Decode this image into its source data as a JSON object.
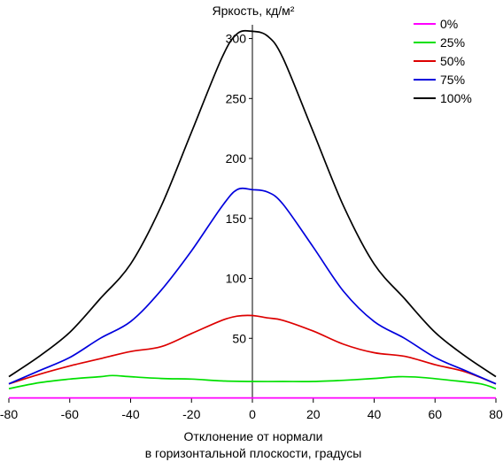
{
  "chart_data": {
    "type": "line",
    "title": "Яркость, кд/м²",
    "xlabel_line1": "Отклонение от нормали",
    "xlabel_line2": "в горизонтальной плоскости, градусы",
    "xlim": [
      -80,
      80
    ],
    "ylim": [
      0,
      310
    ],
    "x_ticks": [
      -80,
      -60,
      -40,
      -20,
      0,
      20,
      40,
      60,
      80
    ],
    "y_ticks": [
      50,
      100,
      150,
      200,
      250,
      300
    ],
    "x_tick_labels": [
      "-80",
      "-60",
      "-40",
      "-20",
      "0",
      "20",
      "40",
      "60",
      "80"
    ],
    "y_tick_labels": [
      "50",
      "100",
      "150",
      "200",
      "250",
      "300"
    ],
    "grid": false,
    "legend_position": "top-right",
    "series": [
      {
        "name": "0%",
        "color": "#ff00ff",
        "points": [
          [
            -80,
            0.3
          ],
          [
            -40,
            0.3
          ],
          [
            0,
            0.3
          ],
          [
            40,
            0.3
          ],
          [
            80,
            0.3
          ]
        ]
      },
      {
        "name": "25%",
        "color": "#00e000",
        "points": [
          [
            -80,
            8
          ],
          [
            -70,
            13
          ],
          [
            -60,
            16
          ],
          [
            -50,
            18
          ],
          [
            -46,
            19
          ],
          [
            -40,
            18
          ],
          [
            -30,
            16.5
          ],
          [
            -20,
            16
          ],
          [
            -10,
            14.5
          ],
          [
            0,
            14
          ],
          [
            10,
            14
          ],
          [
            20,
            14
          ],
          [
            30,
            15
          ],
          [
            40,
            16.5
          ],
          [
            48,
            18
          ],
          [
            55,
            17.5
          ],
          [
            65,
            15
          ],
          [
            75,
            12
          ],
          [
            80,
            8
          ]
        ]
      },
      {
        "name": "50%",
        "color": "#dd0000",
        "points": [
          [
            -80,
            12
          ],
          [
            -70,
            20
          ],
          [
            -60,
            27
          ],
          [
            -50,
            33
          ],
          [
            -40,
            39
          ],
          [
            -30,
            43
          ],
          [
            -20,
            54
          ],
          [
            -10,
            65
          ],
          [
            -5,
            68.5
          ],
          [
            0,
            69
          ],
          [
            5,
            67
          ],
          [
            10,
            65
          ],
          [
            20,
            56
          ],
          [
            30,
            45
          ],
          [
            40,
            38
          ],
          [
            50,
            35
          ],
          [
            60,
            28
          ],
          [
            70,
            22
          ],
          [
            80,
            12
          ]
        ]
      },
      {
        "name": "75%",
        "color": "#0000dd",
        "points": [
          [
            -80,
            12
          ],
          [
            -70,
            23
          ],
          [
            -60,
            34
          ],
          [
            -50,
            50
          ],
          [
            -40,
            64
          ],
          [
            -30,
            90
          ],
          [
            -20,
            123
          ],
          [
            -10,
            160
          ],
          [
            -5,
            174
          ],
          [
            0,
            174
          ],
          [
            5,
            172
          ],
          [
            10,
            162
          ],
          [
            20,
            126
          ],
          [
            30,
            89
          ],
          [
            40,
            64
          ],
          [
            50,
            50
          ],
          [
            60,
            34
          ],
          [
            70,
            23
          ],
          [
            80,
            12
          ]
        ]
      },
      {
        "name": "100%",
        "color": "#000000",
        "points": [
          [
            -80,
            18
          ],
          [
            -70,
            35
          ],
          [
            -60,
            55
          ],
          [
            -50,
            83
          ],
          [
            -40,
            112
          ],
          [
            -30,
            160
          ],
          [
            -20,
            222
          ],
          [
            -10,
            284
          ],
          [
            -5,
            304
          ],
          [
            0,
            306
          ],
          [
            5,
            302
          ],
          [
            10,
            284
          ],
          [
            20,
            222
          ],
          [
            30,
            160
          ],
          [
            40,
            112
          ],
          [
            50,
            83
          ],
          [
            60,
            55
          ],
          [
            70,
            35
          ],
          [
            80,
            18
          ]
        ]
      }
    ]
  }
}
